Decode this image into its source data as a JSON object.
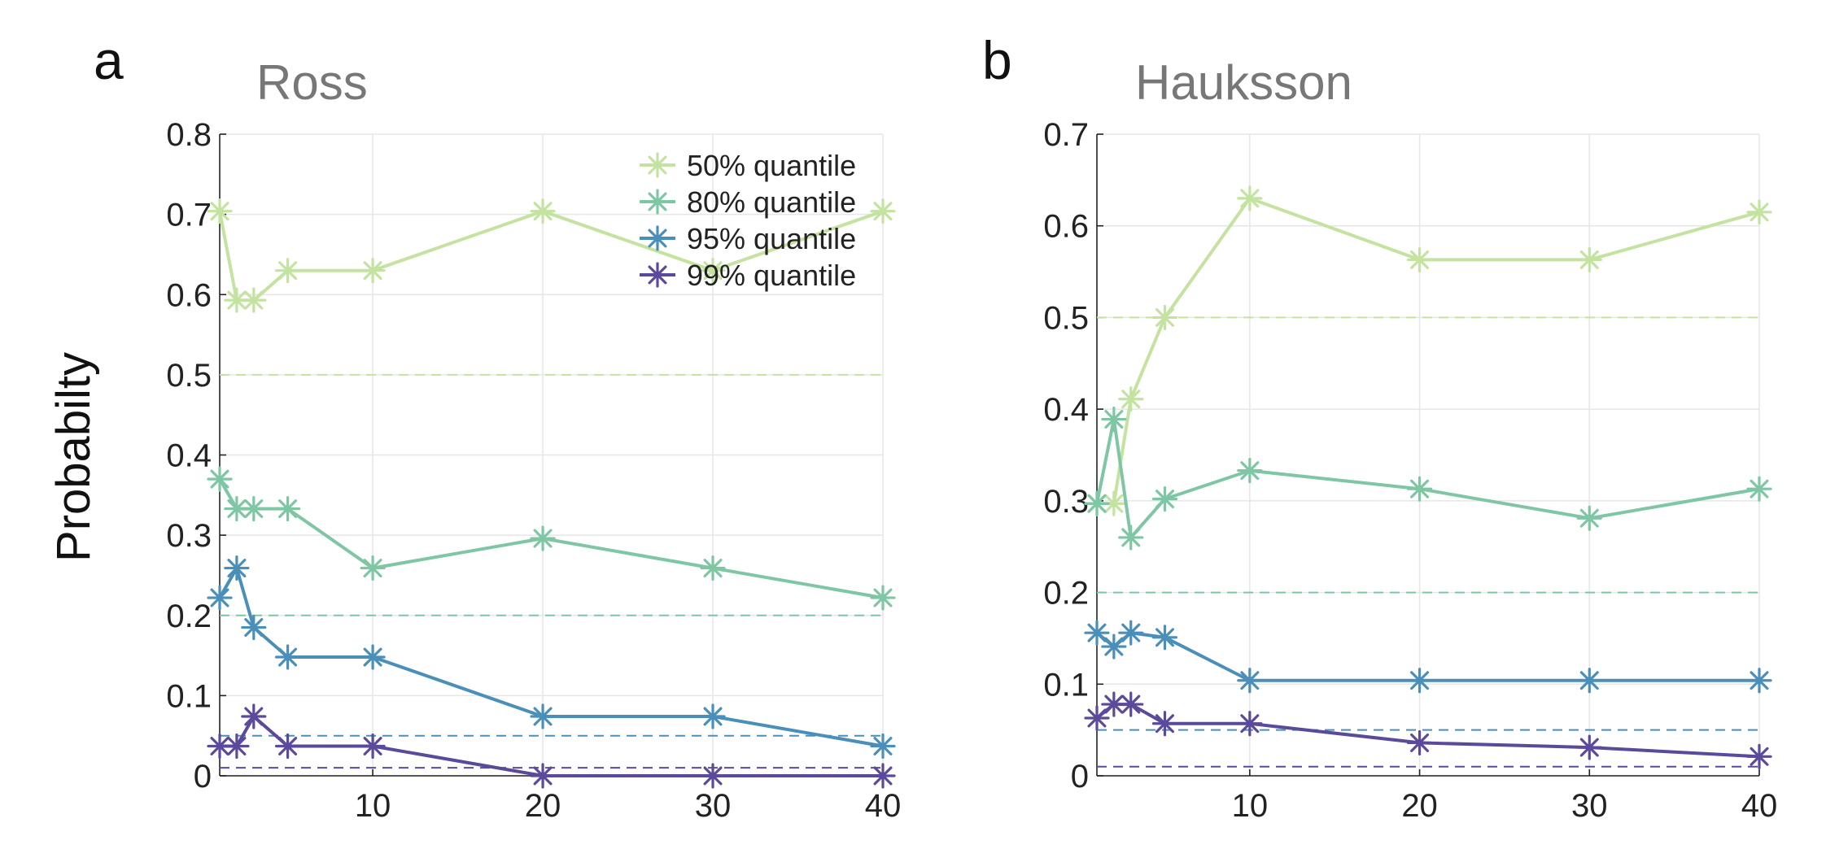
{
  "figure": {
    "ylabel": "Probabilty"
  },
  "chart_data": [
    {
      "type": "line",
      "panel_label": "a",
      "title": "Ross",
      "xlabel": "",
      "ylabel": "Probabilty",
      "xlim": [
        1,
        40
      ],
      "ylim": [
        0,
        0.8
      ],
      "xticks": [
        10,
        20,
        30,
        40
      ],
      "yticks": [
        0,
        0.1,
        0.2,
        0.3,
        0.4,
        0.5,
        0.6,
        0.7,
        0.8
      ],
      "xtick_labels": [
        "10",
        "20",
        "30",
        "40"
      ],
      "ytick_labels": [
        "0",
        "0.1",
        "0.2",
        "0.3",
        "0.4",
        "0.5",
        "0.6",
        "0.7",
        "0.8"
      ],
      "grid": true,
      "legend_position": "top-right",
      "x": [
        1,
        2,
        3,
        5,
        10,
        20,
        30,
        40
      ],
      "series": [
        {
          "name": "50% quantile",
          "color": "#c4e3a0",
          "reference": 0.5,
          "values": [
            0.704,
            0.593,
            0.593,
            0.63,
            0.63,
            0.704,
            0.63,
            0.704
          ]
        },
        {
          "name": "80% quantile",
          "color": "#7ec6a4",
          "reference": 0.2,
          "values": [
            0.37,
            0.333,
            0.333,
            0.333,
            0.259,
            0.296,
            0.259,
            0.222
          ]
        },
        {
          "name": "95% quantile",
          "color": "#4a8fba",
          "reference": 0.05,
          "values": [
            0.222,
            0.259,
            0.185,
            0.148,
            0.148,
            0.074,
            0.074,
            0.037
          ]
        },
        {
          "name": "99% quantile",
          "color": "#5b4a9b",
          "reference": 0.01,
          "values": [
            0.037,
            0.037,
            0.074,
            0.037,
            0.037,
            0.0,
            0.0,
            0.0
          ]
        }
      ]
    },
    {
      "type": "line",
      "panel_label": "b",
      "title": "Hauksson",
      "xlabel": "",
      "ylabel": "",
      "xlim": [
        1,
        40
      ],
      "ylim": [
        0,
        0.7
      ],
      "xticks": [
        10,
        20,
        30,
        40
      ],
      "yticks": [
        0,
        0.1,
        0.2,
        0.3,
        0.4,
        0.5,
        0.6,
        0.7
      ],
      "xtick_labels": [
        "10",
        "20",
        "30",
        "40"
      ],
      "ytick_labels": [
        "0",
        "0.1",
        "0.2",
        "0.3",
        "0.4",
        "0.5",
        "0.6",
        "0.7"
      ],
      "grid": true,
      "legend_position": "none",
      "x": [
        1,
        2,
        3,
        5,
        10,
        20,
        30,
        40
      ],
      "series": [
        {
          "name": "50% quantile",
          "color": "#c4e3a0",
          "reference": 0.5,
          "values": [
            0.297,
            0.297,
            0.411,
            0.5,
            0.63,
            0.563,
            0.563,
            0.615
          ]
        },
        {
          "name": "80% quantile",
          "color": "#7ec6a4",
          "reference": 0.2,
          "values": [
            0.297,
            0.389,
            0.26,
            0.302,
            0.333,
            0.313,
            0.281,
            0.313
          ]
        },
        {
          "name": "95% quantile",
          "color": "#4a8fba",
          "reference": 0.05,
          "values": [
            0.156,
            0.141,
            0.156,
            0.151,
            0.104,
            0.104,
            0.104,
            0.104
          ]
        },
        {
          "name": "99% quantile",
          "color": "#5b4a9b",
          "reference": 0.01,
          "values": [
            0.063,
            0.078,
            0.078,
            0.057,
            0.057,
            0.036,
            0.031,
            0.021
          ]
        }
      ]
    }
  ]
}
